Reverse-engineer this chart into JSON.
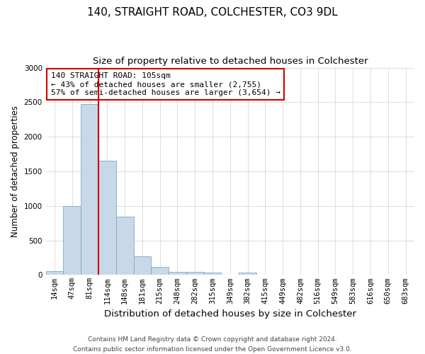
{
  "title": "140, STRAIGHT ROAD, COLCHESTER, CO3 9DL",
  "subtitle": "Size of property relative to detached houses in Colchester",
  "xlabel": "Distribution of detached houses by size in Colchester",
  "ylabel": "Number of detached properties",
  "categories": [
    "14sqm",
    "47sqm",
    "81sqm",
    "114sqm",
    "148sqm",
    "181sqm",
    "215sqm",
    "248sqm",
    "282sqm",
    "315sqm",
    "349sqm",
    "382sqm",
    "415sqm",
    "449sqm",
    "482sqm",
    "516sqm",
    "549sqm",
    "583sqm",
    "616sqm",
    "650sqm",
    "683sqm"
  ],
  "values": [
    55,
    1000,
    2470,
    1650,
    840,
    275,
    120,
    50,
    50,
    35,
    0,
    30,
    0,
    0,
    0,
    0,
    0,
    0,
    0,
    0,
    0
  ],
  "bar_color": "#c8d8e8",
  "bar_edge_color": "#7aaac8",
  "vline_index": 2.5,
  "vline_color": "#cc0000",
  "annotation_line1": "140 STRAIGHT ROAD: 105sqm",
  "annotation_line2": "← 43% of detached houses are smaller (2,755)",
  "annotation_line3": "57% of semi-detached houses are larger (3,654) →",
  "annotation_box_color": "#ffffff",
  "annotation_box_edge_color": "#cc0000",
  "ylim": [
    0,
    3000
  ],
  "yticks": [
    0,
    500,
    1000,
    1500,
    2000,
    2500,
    3000
  ],
  "footer_line1": "Contains HM Land Registry data © Crown copyright and database right 2024.",
  "footer_line2": "Contains public sector information licensed under the Open Government Licence v3.0.",
  "title_fontsize": 11,
  "subtitle_fontsize": 9.5,
  "xlabel_fontsize": 9.5,
  "ylabel_fontsize": 8.5,
  "tick_fontsize": 7.5,
  "annotation_fontsize": 8,
  "footer_fontsize": 6.5
}
